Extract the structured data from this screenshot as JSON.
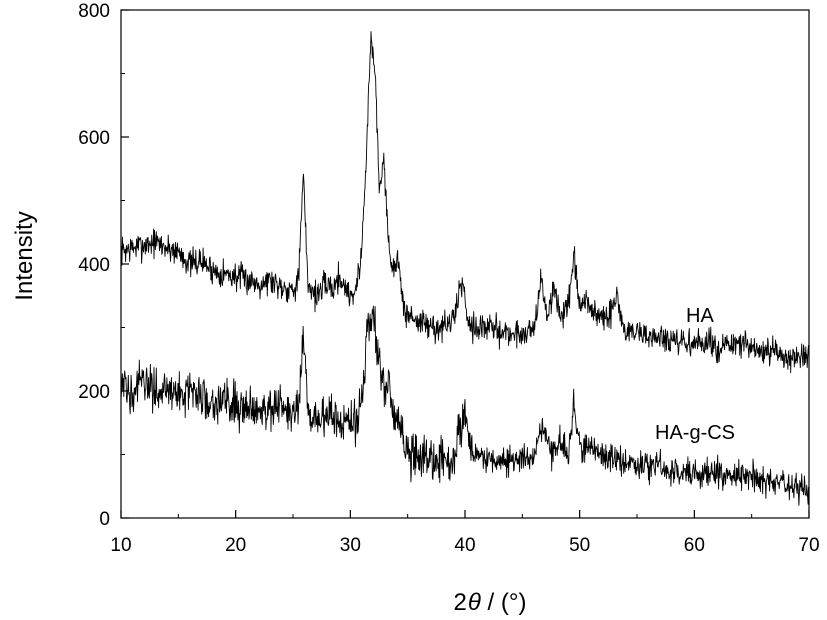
{
  "chart_data": {
    "type": "line",
    "xlabel_parts": {
      "prefix": "2",
      "symbol": "θ",
      "suffix": " / (°)"
    },
    "ylabel": "Intensity",
    "xlim": [
      10,
      70
    ],
    "ylim": [
      0,
      800
    ],
    "x_ticks": [
      10,
      20,
      30,
      40,
      50,
      60,
      70
    ],
    "y_ticks": [
      0,
      200,
      400,
      600,
      800
    ],
    "grid": false,
    "legend": "none",
    "line_color": "#000000",
    "series": [
      {
        "name": "HA",
        "x": [
          10,
          11,
          12,
          13,
          14,
          15,
          16,
          17,
          18,
          19,
          20,
          21,
          22,
          23,
          24,
          25,
          25.5,
          25.9,
          26.3,
          27,
          28,
          28.5,
          29,
          30,
          30.5,
          31,
          31.5,
          31.8,
          32.2,
          32.5,
          32.9,
          33.3,
          33.7,
          34.1,
          34.6,
          35,
          36,
          37,
          38,
          39,
          39.5,
          39.8,
          40.3,
          41,
          42,
          43,
          44,
          45,
          46,
          46.6,
          47.2,
          47.8,
          48.3,
          49,
          49.5,
          50,
          50.6,
          51.5,
          52.5,
          53.2,
          54,
          55,
          56,
          57,
          58,
          59,
          60,
          61,
          62,
          63,
          64,
          65,
          66,
          67,
          68,
          69,
          70
        ],
        "y": [
          420,
          425,
          430,
          435,
          425,
          420,
          400,
          405,
          390,
          385,
          380,
          375,
          370,
          375,
          365,
          360,
          380,
          540,
          370,
          350,
          370,
          360,
          380,
          350,
          360,
          420,
          620,
          760,
          690,
          520,
          570,
          450,
          380,
          420,
          330,
          320,
          310,
          300,
          300,
          310,
          360,
          370,
          310,
          300,
          300,
          295,
          290,
          290,
          300,
          370,
          320,
          360,
          320,
          330,
          410,
          330,
          340,
          320,
          310,
          350,
          290,
          295,
          285,
          285,
          275,
          275,
          275,
          275,
          270,
          270,
          275,
          265,
          260,
          260,
          255,
          255,
          250
        ]
      },
      {
        "name": "HA-g-CS",
        "x": [
          10,
          11,
          12,
          13,
          14,
          15,
          16,
          17,
          18,
          19,
          20,
          21,
          22,
          23,
          24,
          25,
          25.5,
          25.9,
          26.3,
          27,
          28,
          29,
          30,
          30.5,
          31,
          31.4,
          31.8,
          32.2,
          32.6,
          33,
          33.4,
          33.8,
          34.2,
          34.6,
          35,
          36,
          37,
          38,
          39,
          39.6,
          40,
          40.5,
          41,
          42,
          43,
          44,
          45,
          46,
          46.7,
          47.5,
          48.3,
          49,
          49.5,
          50,
          51,
          52,
          53,
          54,
          55,
          56,
          57,
          58,
          59,
          60,
          61,
          62,
          63,
          64,
          65,
          66,
          67,
          68,
          69,
          70
        ],
        "y": [
          200,
          205,
          210,
          205,
          200,
          195,
          200,
          190,
          185,
          185,
          180,
          175,
          175,
          175,
          170,
          165,
          175,
          280,
          165,
          155,
          165,
          150,
          150,
          145,
          190,
          280,
          330,
          300,
          230,
          190,
          210,
          150,
          160,
          120,
          100,
          95,
          95,
          90,
          95,
          140,
          165,
          110,
          100,
          95,
          90,
          90,
          90,
          100,
          150,
          100,
          120,
          100,
          180,
          110,
          110,
          100,
          95,
          90,
          85,
          80,
          80,
          75,
          75,
          70,
          70,
          70,
          70,
          70,
          65,
          60,
          55,
          50,
          50,
          45
        ]
      }
    ],
    "annotations": [
      "HA",
      "HA-g-CS"
    ]
  }
}
